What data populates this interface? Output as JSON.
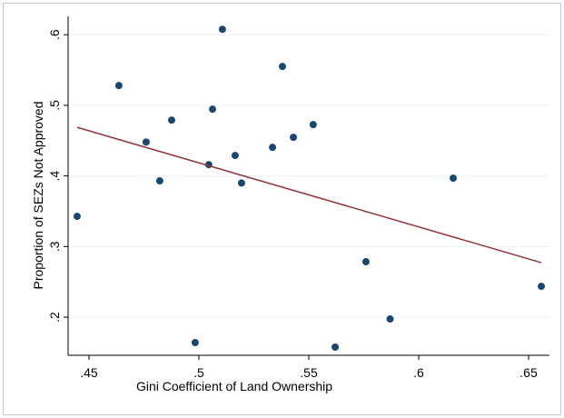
{
  "chart_data": {
    "type": "scatter",
    "x_label": "Gini Coefficient of Land Ownership",
    "y_label": "Proportion of SEZs Not Approved",
    "xlim": [
      0.4405,
      0.6595
    ],
    "ylim": [
      0.146,
      0.626
    ],
    "xticks": [
      {
        "value": 0.45,
        "label": ".45"
      },
      {
        "value": 0.5,
        "label": ".5"
      },
      {
        "value": 0.55,
        "label": ".55"
      },
      {
        "value": 0.6,
        "label": ".6"
      },
      {
        "value": 0.65,
        "label": ".65"
      }
    ],
    "yticks": [
      {
        "value": 0.2,
        "label": ".2"
      },
      {
        "value": 0.3,
        "label": ".3"
      },
      {
        "value": 0.4,
        "label": ".4"
      },
      {
        "value": 0.5,
        "label": ".5"
      },
      {
        "value": 0.6,
        "label": ".6"
      }
    ],
    "grid": true,
    "series": [
      {
        "color": "#1a476f",
        "x": [
          0.4446,
          0.4636,
          0.476,
          0.4822,
          0.4876,
          0.4983,
          0.5062,
          0.5045,
          0.5107,
          0.5165,
          0.5194,
          0.538,
          0.5335,
          0.543,
          0.552,
          0.562,
          0.576,
          0.587,
          0.6157,
          0.6558
        ],
        "values": [
          0.3428,
          0.528,
          0.448,
          0.393,
          0.479,
          0.164,
          0.4945,
          0.416,
          0.6077,
          0.429,
          0.39,
          0.555,
          0.4405,
          0.4547,
          0.4727,
          0.1576,
          0.2785,
          0.1974,
          0.3968,
          0.2437
        ]
      },
      {
        "type": "line",
        "color": "#90353b",
        "x": [
          0.4446,
          0.6558
        ],
        "values": [
          0.4688,
          0.2772
        ]
      }
    ]
  }
}
